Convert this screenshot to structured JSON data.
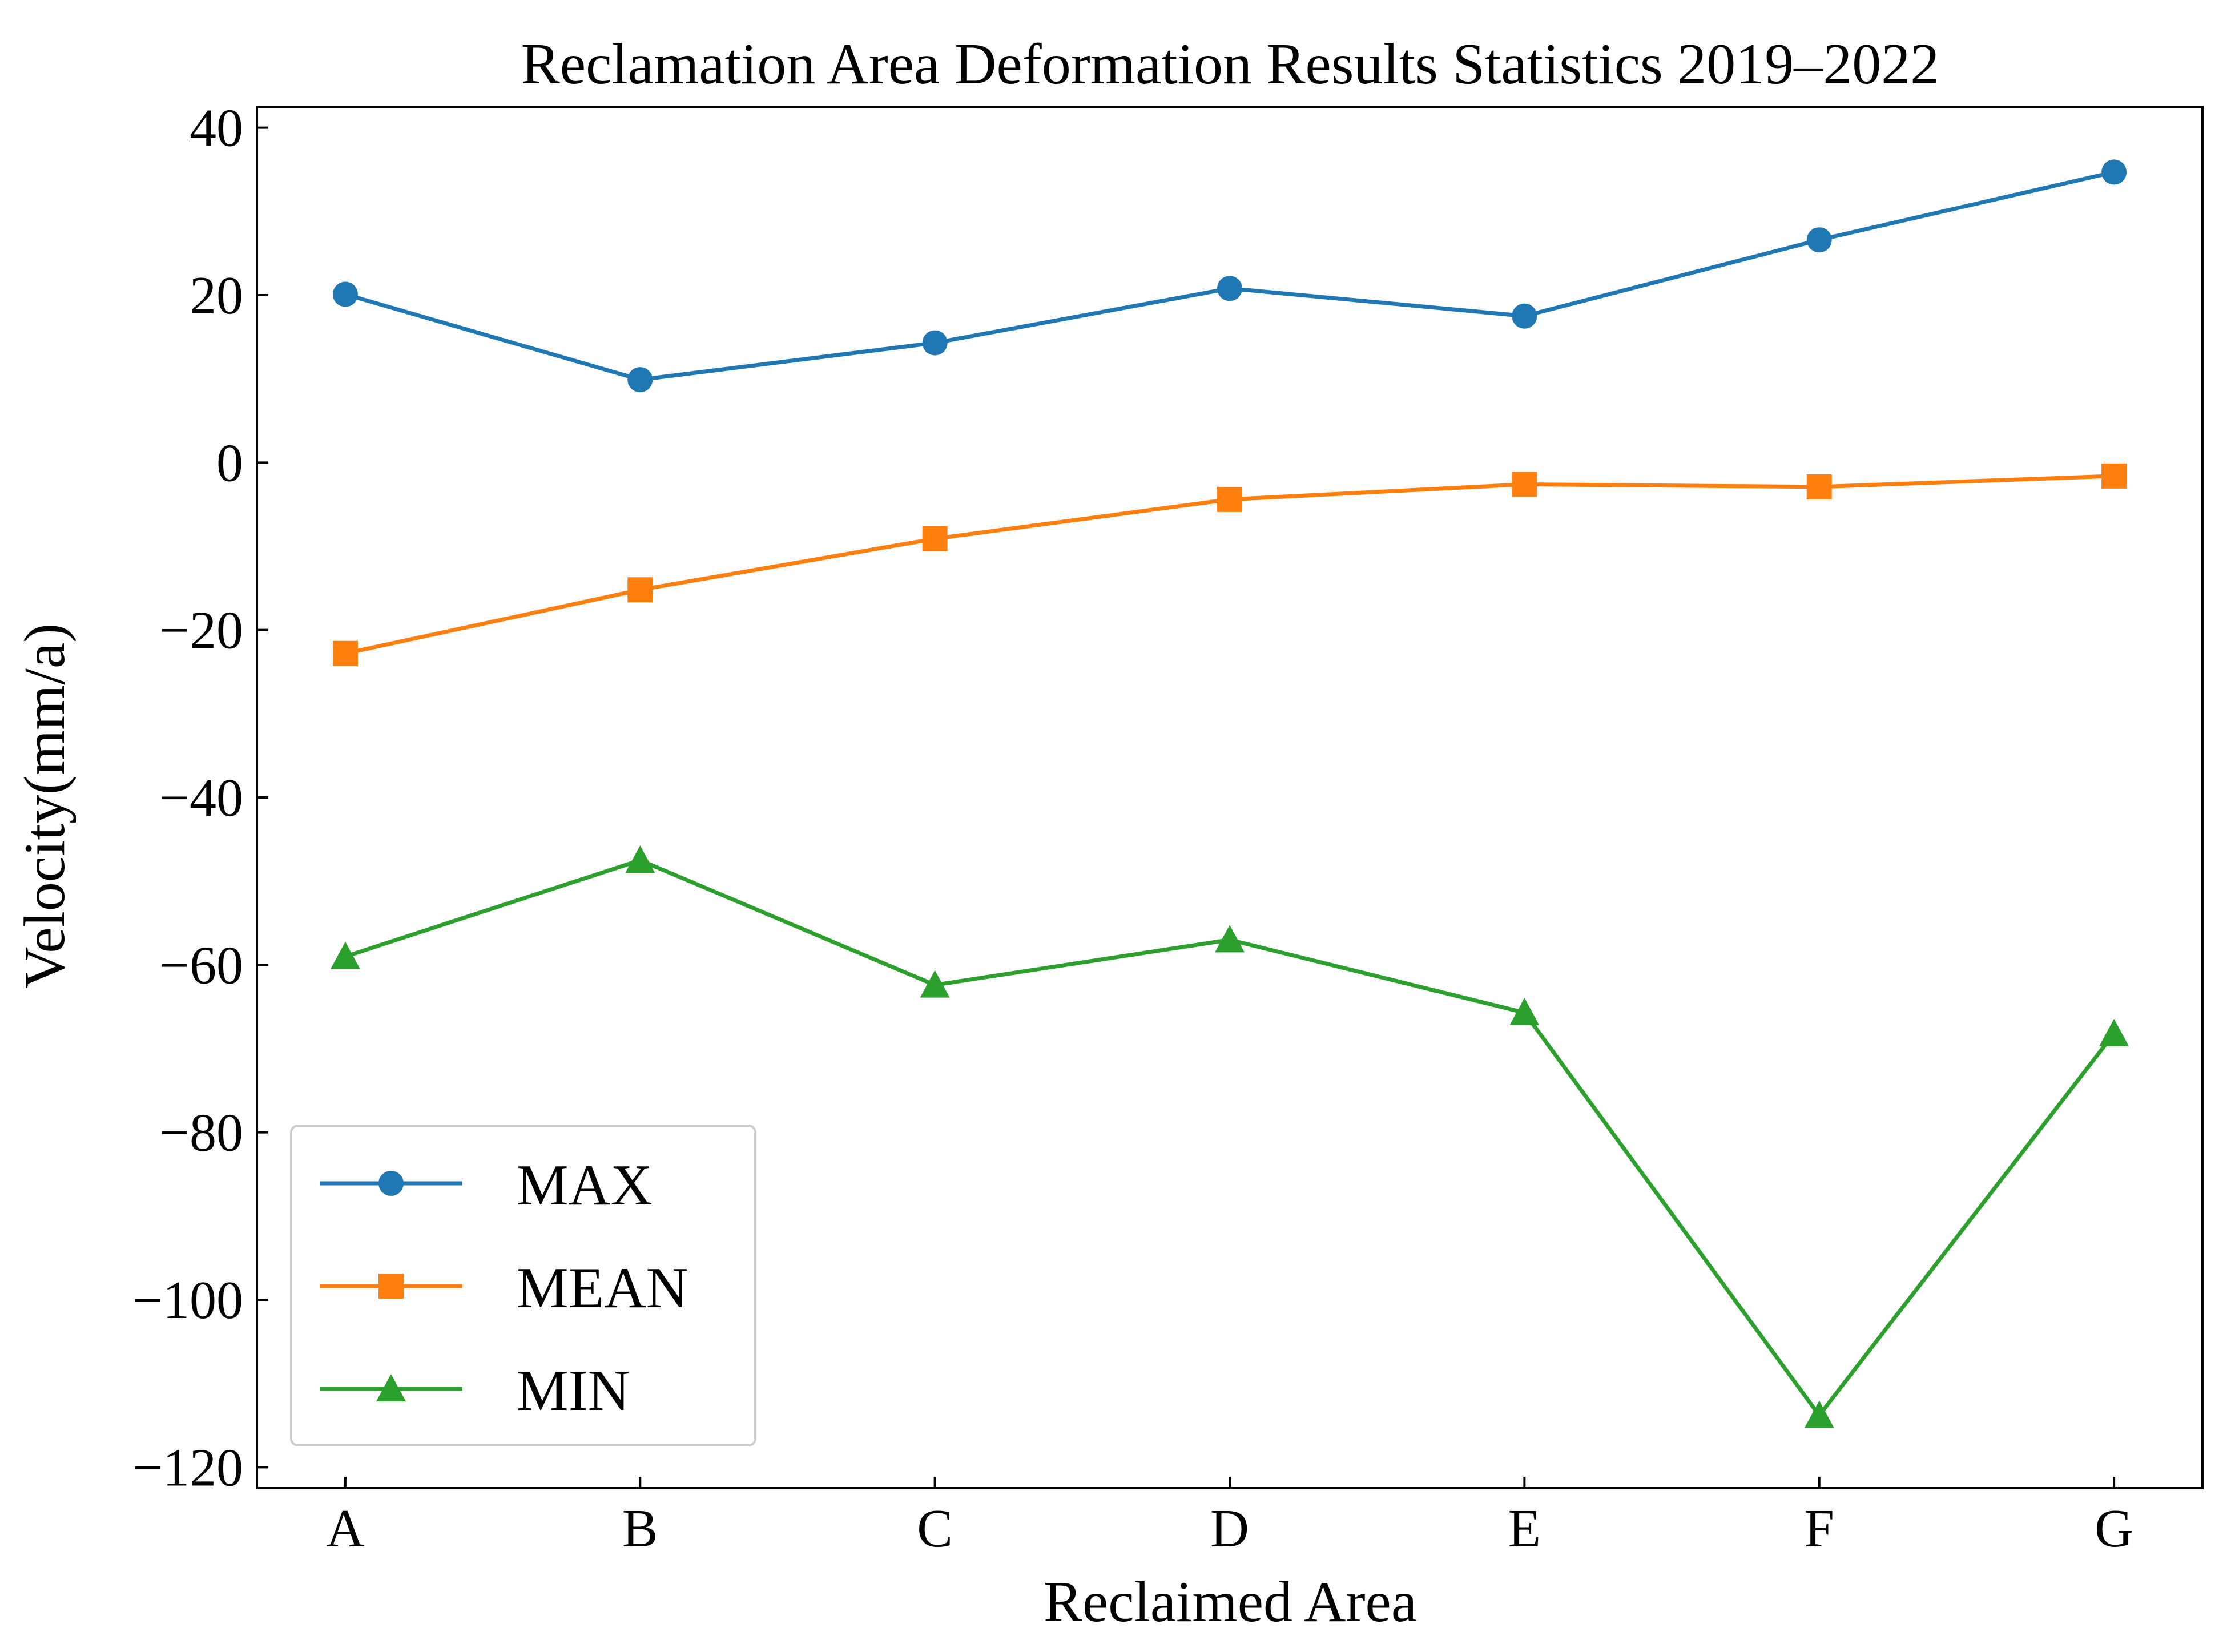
{
  "chart_data": {
    "type": "line",
    "title": "Reclamation Area Deformation Results Statistics 2019–2022",
    "xlabel": "Reclaimed Area",
    "ylabel": "Velocity(mm/a)",
    "categories": [
      "A",
      "B",
      "C",
      "D",
      "E",
      "F",
      "G"
    ],
    "ylim": [
      -122.5,
      42.5
    ],
    "yticks": [
      40,
      20,
      0,
      -20,
      -40,
      -60,
      -80,
      -100,
      -120
    ],
    "ytick_labels": [
      "40",
      "20",
      "0",
      "−20",
      "−40",
      "−60",
      "−80",
      "−100",
      "−120"
    ],
    "grid": false,
    "legend_position": "lower-left",
    "series": [
      {
        "name": "MAX",
        "marker": "circle",
        "color": "#1f77b4",
        "values": [
          20.1,
          9.9,
          14.3,
          20.8,
          17.5,
          26.6,
          34.7
        ]
      },
      {
        "name": "MEAN",
        "marker": "square",
        "color": "#ff7f0e",
        "values": [
          -22.8,
          -15.2,
          -9.1,
          -4.4,
          -2.6,
          -2.9,
          -1.6
        ]
      },
      {
        "name": "MIN",
        "marker": "triangle",
        "color": "#2ca02c",
        "values": [
          -59.0,
          -47.5,
          -62.4,
          -57.0,
          -65.7,
          -113.8,
          -68.2
        ]
      }
    ]
  }
}
